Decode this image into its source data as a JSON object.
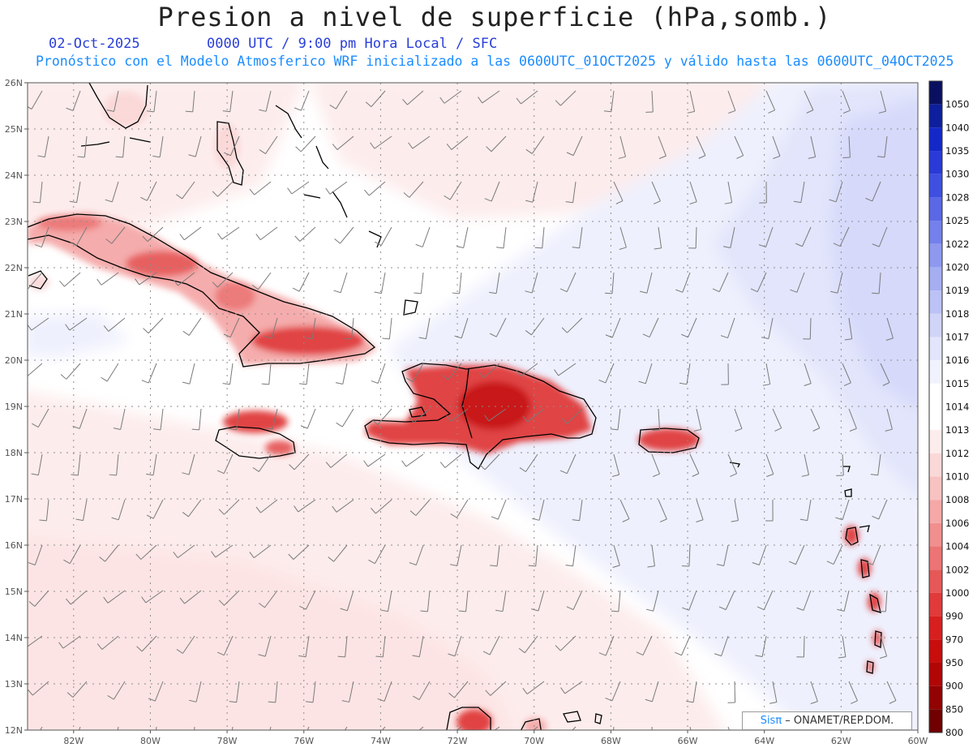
{
  "header": {
    "title": "Presion a nivel de superficie (hPa,somb.)",
    "date": "02-Oct-2025",
    "time_info": "0000 UTC / 9:00 pm Hora Local / SFC",
    "model_info": "Pronóstico con el Modelo Atmosferico WRF inicializado a las 0600UTC_01OCT2025 y válido hasta las  0600UTC_04OCT2025"
  },
  "map": {
    "lon_range": [
      -83.2,
      -60
    ],
    "lat_range": [
      12,
      26
    ],
    "lat_labels": [
      "26N",
      "25N",
      "24N",
      "23N",
      "22N",
      "21N",
      "20N",
      "19N",
      "18N",
      "17N",
      "16N",
      "15N",
      "14N",
      "13N",
      "12N"
    ],
    "lon_labels": [
      "82W",
      "80W",
      "78W",
      "76W",
      "74W",
      "72W",
      "70W",
      "68W",
      "66W",
      "64W",
      "62W",
      "60W"
    ],
    "features": [
      "Florida",
      "Bahamas",
      "Cuba",
      "Jamaica",
      "Haiti",
      "Dominican Republic",
      "Puerto Rico",
      "Lesser Antilles",
      "South America coast"
    ]
  },
  "colorbar": {
    "levels": [
      "1050",
      "1040",
      "1035",
      "1030",
      "1028",
      "1025",
      "1022",
      "1020",
      "1019",
      "1018",
      "1017",
      "1016",
      "1015",
      "1014",
      "1013",
      "1012",
      "1010",
      "1008",
      "1006",
      "1004",
      "1002",
      "1000",
      "990",
      "970",
      "950",
      "900",
      "850",
      "800"
    ],
    "colors": [
      "#0a1060",
      "#0d1f9c",
      "#1428c8",
      "#2a3ad6",
      "#3f4fe0",
      "#5a68e6",
      "#7480eb",
      "#8e98ef",
      "#a6aef2",
      "#bcc2f5",
      "#d0d4f8",
      "#e2e5fb",
      "#f0f2fd",
      "#ffffff",
      "#ffffff",
      "#fdecec",
      "#fbd8d8",
      "#f8c2c2",
      "#f5a8a8",
      "#f18f8f",
      "#ec7474",
      "#e65858",
      "#e03a3a",
      "#d81f1f",
      "#c80d0d",
      "#b00606",
      "#920303",
      "#700000"
    ]
  },
  "credit": {
    "brand": "Sisπ",
    "text": " – ONAMET/REP.DOM."
  }
}
